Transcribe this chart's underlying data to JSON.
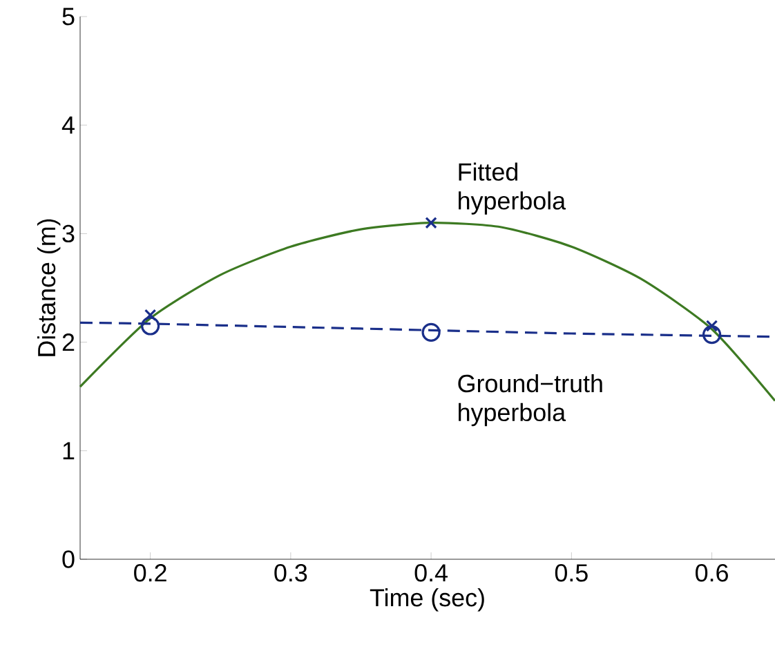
{
  "chart_data": {
    "type": "line",
    "xlabel": "Time (sec)",
    "ylabel": "Distance (m)",
    "xlim": [
      0.15,
      0.645
    ],
    "ylim": [
      0,
      5
    ],
    "xticks": [
      0.2,
      0.3,
      0.4,
      0.5,
      0.6
    ],
    "yticks": [
      0,
      1,
      2,
      3,
      4,
      5
    ],
    "grid": false,
    "series": [
      {
        "name": "Fitted hyperbola",
        "color": "#3d7a22",
        "line_style": "solid",
        "marker": "none",
        "x": [
          0.15,
          0.2,
          0.25,
          0.3,
          0.35,
          0.4,
          0.45,
          0.5,
          0.55,
          0.6,
          0.645
        ],
        "values": [
          1.59,
          2.22,
          2.62,
          2.88,
          3.04,
          3.1,
          3.06,
          2.88,
          2.58,
          2.12,
          1.46
        ]
      },
      {
        "name": "Ground−truth hyperbola",
        "color": "#1a2f8a",
        "line_style": "dashed",
        "marker": "none",
        "x": [
          0.15,
          0.2,
          0.3,
          0.4,
          0.5,
          0.645
        ],
        "values": [
          2.18,
          2.17,
          2.14,
          2.11,
          2.08,
          2.05
        ]
      },
      {
        "type": "scatter",
        "color": "#1a2f8a",
        "marker": "cross",
        "x": [
          0.2,
          0.4,
          0.6
        ],
        "values": [
          2.25,
          3.1,
          2.15
        ]
      },
      {
        "type": "scatter",
        "color": "#1a2f8a",
        "marker": "circle",
        "x": [
          0.2,
          0.4,
          0.6
        ],
        "values": [
          2.15,
          2.09,
          2.07
        ]
      }
    ]
  }
}
